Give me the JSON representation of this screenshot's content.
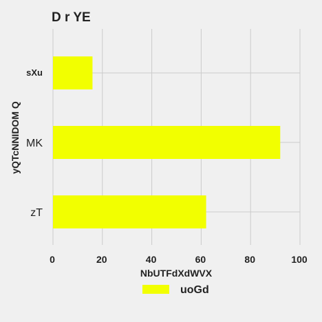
{
  "chart_data": {
    "type": "bar",
    "orientation": "horizontal",
    "title": "D r YE",
    "xlabel": "NbUTFdXdWVX",
    "ylabel": "yQTcNNIDOM Q",
    "categories": [
      "sXu",
      "MK",
      "zT"
    ],
    "series": [
      {
        "name": "uoGd",
        "values": [
          16,
          92,
          62
        ],
        "color": "#f2ff00"
      }
    ],
    "xlim": [
      0,
      100
    ],
    "xticks": [
      "0",
      "20",
      "40",
      "60",
      "80",
      "100"
    ],
    "grid": true,
    "legend_position": "bottom-center",
    "background": "#f0f0f0"
  }
}
